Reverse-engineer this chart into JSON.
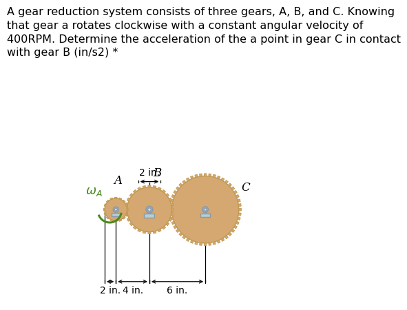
{
  "title_text": "A gear reduction system consists of three gears, A, B, and C. Knowing\nthat gear a rotates clockwise with a constant angular velocity of\n400RPM. Determine the acceleration of the a point in gear C in contact\nwith gear B (in/s2) *",
  "title_fontsize": 11.5,
  "background_color": "#ffffff",
  "gear_color": "#D4A870",
  "gear_edge_color": "#C09850",
  "hub_color": "#9AABB5",
  "hub_inner_color": "#C8D8DC",
  "mount_color": "#B8CDD0",
  "mount_edge_color": "#8899AA",
  "omega_color": "#4A8A20",
  "arrow_color": "#000000",
  "rA_in": 2,
  "rB_in": 4,
  "rC_in": 6,
  "scale": 0.026,
  "cAx": 0.175,
  "cAy": 0.435,
  "n_teeth_A": 16,
  "n_teeth_B": 28,
  "n_teeth_C": 48
}
